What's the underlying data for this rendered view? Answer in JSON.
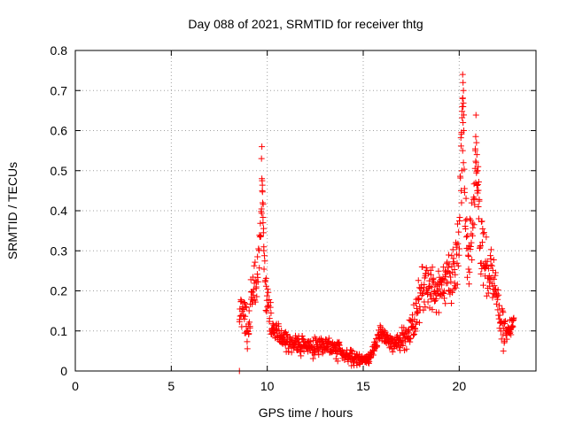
{
  "chart_data": {
    "type": "scatter",
    "title": "Day 088 of 2021, SRMTID for receiver thtg",
    "xlabel": "GPS time / hours",
    "ylabel": "SRMTID / TECUs",
    "xlim": [
      0,
      24
    ],
    "ylim": [
      0,
      0.8
    ],
    "xticks": [
      0,
      5,
      10,
      15,
      20
    ],
    "yticks": [
      0,
      0.1,
      0.2,
      0.3,
      0.4,
      0.5,
      0.6,
      0.7,
      0.8
    ],
    "xtick_labels": [
      "0",
      "5",
      "10",
      "15",
      "20"
    ],
    "ytick_labels": [
      "0",
      "0.1",
      "0.2",
      "0.3",
      "0.4",
      "0.5",
      "0.6",
      "0.7",
      "0.8"
    ],
    "grid": true,
    "marker": "+",
    "color": "#ff0000",
    "series": [
      {
        "name": "SRMTID",
        "profile_x": [
          8.55,
          8.6,
          8.7,
          8.8,
          8.9,
          9.0,
          9.1,
          9.2,
          9.3,
          9.4,
          9.5,
          9.6,
          9.7,
          9.75,
          9.8,
          9.9,
          10.0,
          10.2,
          10.4,
          10.6,
          10.8,
          11.0,
          11.2,
          11.5,
          11.8,
          12.0,
          12.3,
          12.6,
          12.9,
          13.2,
          13.5,
          13.8,
          14.0,
          14.3,
          14.6,
          14.9,
          15.2,
          15.4,
          15.6,
          15.8,
          16.0,
          16.3,
          16.6,
          16.9,
          17.2,
          17.5,
          17.8,
          18.0,
          18.3,
          18.6,
          18.9,
          19.2,
          19.5,
          19.8,
          20.0,
          20.1,
          20.2,
          20.3,
          20.5,
          20.7,
          20.85,
          20.95,
          21.1,
          21.3,
          21.5,
          21.7,
          21.9,
          22.1,
          22.3,
          22.5,
          22.7,
          22.85
        ],
        "profile_y": [
          0.13,
          0.16,
          0.17,
          0.15,
          0.12,
          0.1,
          0.14,
          0.2,
          0.22,
          0.21,
          0.25,
          0.3,
          0.4,
          0.5,
          0.32,
          0.22,
          0.18,
          0.12,
          0.1,
          0.09,
          0.08,
          0.08,
          0.075,
          0.07,
          0.065,
          0.065,
          0.06,
          0.065,
          0.065,
          0.06,
          0.055,
          0.05,
          0.04,
          0.035,
          0.03,
          0.03,
          0.03,
          0.035,
          0.06,
          0.09,
          0.09,
          0.08,
          0.07,
          0.07,
          0.08,
          0.1,
          0.15,
          0.2,
          0.22,
          0.2,
          0.2,
          0.22,
          0.25,
          0.25,
          0.3,
          0.6,
          0.7,
          0.4,
          0.3,
          0.35,
          0.55,
          0.48,
          0.3,
          0.28,
          0.25,
          0.22,
          0.2,
          0.15,
          0.1,
          0.1,
          0.11,
          0.13
        ],
        "noise_x": [
          8.6,
          9.0,
          9.4,
          9.8,
          10.2,
          11.0,
          12.0,
          13.0,
          14.0,
          15.0,
          15.5,
          16.0,
          17.0,
          18.0,
          19.0,
          20.0,
          20.5,
          21.0,
          21.5,
          22.0,
          22.5,
          22.85
        ],
        "noise_y": [
          0.035,
          0.05,
          0.04,
          0.05,
          0.03,
          0.02,
          0.02,
          0.02,
          0.015,
          0.012,
          0.015,
          0.015,
          0.02,
          0.04,
          0.045,
          0.06,
          0.07,
          0.06,
          0.05,
          0.04,
          0.025,
          0.025
        ],
        "x_start": 8.55,
        "x_end": 22.85,
        "samples": 900,
        "peak_points": [
          {
            "x": 9.72,
            "y": 0.56
          },
          {
            "x": 9.7,
            "y": 0.53
          },
          {
            "x": 9.72,
            "y": 0.48
          },
          {
            "x": 9.74,
            "y": 0.45
          },
          {
            "x": 9.76,
            "y": 0.42
          },
          {
            "x": 9.78,
            "y": 0.37
          },
          {
            "x": 9.8,
            "y": 0.345
          },
          {
            "x": 9.82,
            "y": 0.31
          },
          {
            "x": 8.55,
            "y": 0.0
          },
          {
            "x": 20.18,
            "y": 0.74
          },
          {
            "x": 20.2,
            "y": 0.72
          },
          {
            "x": 20.22,
            "y": 0.7
          },
          {
            "x": 20.16,
            "y": 0.66
          },
          {
            "x": 20.2,
            "y": 0.62
          },
          {
            "x": 20.24,
            "y": 0.6
          },
          {
            "x": 20.18,
            "y": 0.55
          },
          {
            "x": 20.22,
            "y": 0.52
          },
          {
            "x": 20.14,
            "y": 0.5
          },
          {
            "x": 20.1,
            "y": 0.45
          },
          {
            "x": 20.12,
            "y": 0.42
          },
          {
            "x": 20.86,
            "y": 0.585
          },
          {
            "x": 20.9,
            "y": 0.57
          },
          {
            "x": 20.84,
            "y": 0.55
          },
          {
            "x": 20.92,
            "y": 0.54
          },
          {
            "x": 20.88,
            "y": 0.52
          },
          {
            "x": 20.96,
            "y": 0.5
          },
          {
            "x": 20.86,
            "y": 0.47
          },
          {
            "x": 20.94,
            "y": 0.45
          },
          {
            "x": 21.0,
            "y": 0.41
          },
          {
            "x": 21.02,
            "y": 0.38
          },
          {
            "x": 22.3,
            "y": 0.05
          }
        ]
      }
    ]
  }
}
